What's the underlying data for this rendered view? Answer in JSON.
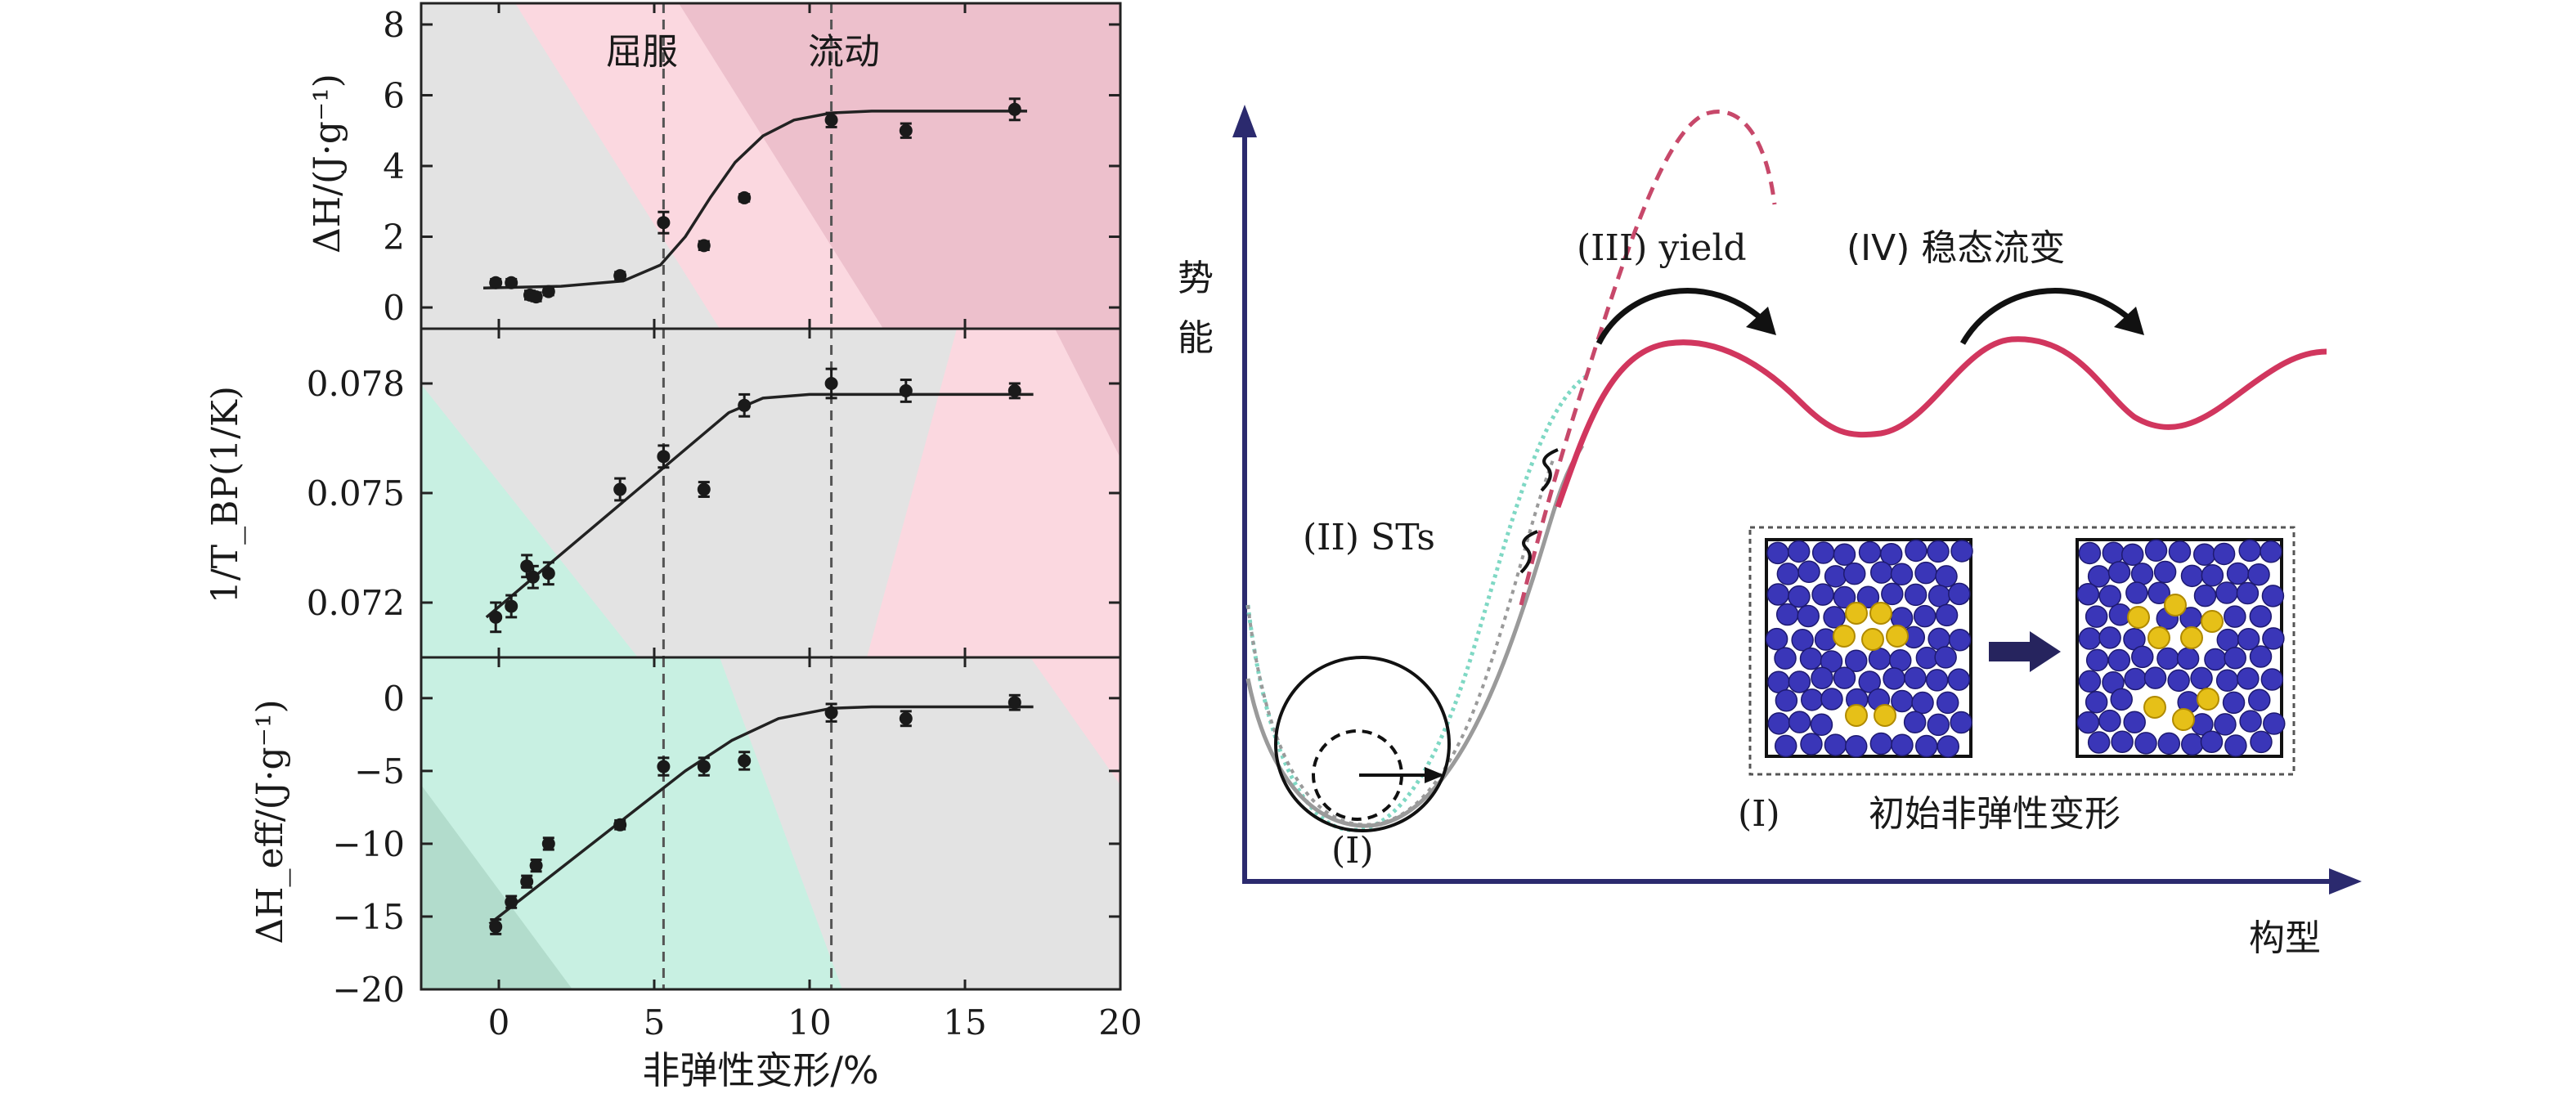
{
  "chart_data": [
    {
      "type": "scatter",
      "panel": "top",
      "ylabel": "ΔH/(J·g⁻¹)",
      "xlim": [
        -2.5,
        20
      ],
      "ylim": [
        -0.6,
        8.6
      ],
      "yticks": [
        "0",
        "2",
        "4",
        "6",
        "8"
      ],
      "ytick_values": [
        0,
        2,
        4,
        6,
        8
      ],
      "annotations": [
        "屈服",
        "流动"
      ],
      "vlines": [
        5.3,
        10.7
      ],
      "series": [
        {
          "points": [
            [
              -0.1,
              0.7
            ],
            [
              0.4,
              0.7
            ],
            [
              1.0,
              0.35
            ],
            [
              1.2,
              0.3
            ],
            [
              1.6,
              0.45
            ],
            [
              3.9,
              0.9
            ],
            [
              5.3,
              2.4
            ],
            [
              6.6,
              1.75
            ],
            [
              7.9,
              3.1
            ],
            [
              10.7,
              5.3
            ],
            [
              13.1,
              5.0
            ],
            [
              16.6,
              5.6
            ]
          ],
          "errors": [
            0.1,
            0.1,
            0.12,
            0.12,
            0.1,
            0.1,
            0.3,
            0.12,
            0.1,
            0.2,
            0.2,
            0.3
          ]
        },
        {
          "fit": [
            [
              -0.5,
              0.55
            ],
            [
              2,
              0.6
            ],
            [
              4,
              0.75
            ],
            [
              5.2,
              1.2
            ],
            [
              6.0,
              2.0
            ],
            [
              6.8,
              3.1
            ],
            [
              7.6,
              4.1
            ],
            [
              8.5,
              4.85
            ],
            [
              9.5,
              5.3
            ],
            [
              10.7,
              5.5
            ],
            [
              12,
              5.55
            ],
            [
              17,
              5.55
            ]
          ]
        }
      ]
    },
    {
      "type": "scatter",
      "panel": "middle",
      "ylabel": "1/T_BP(1/K)",
      "xlim": [
        -2.5,
        20
      ],
      "ylim": [
        0.0705,
        0.0795
      ],
      "yticks": [
        "0.072",
        "0.075",
        "0.078"
      ],
      "ytick_values": [
        0.072,
        0.075,
        0.078
      ],
      "series": [
        {
          "points": [
            [
              -0.1,
              0.0716
            ],
            [
              0.4,
              0.0719
            ],
            [
              0.9,
              0.073
            ],
            [
              1.1,
              0.0727
            ],
            [
              1.6,
              0.0728
            ],
            [
              3.9,
              0.0751
            ],
            [
              5.3,
              0.076
            ],
            [
              6.6,
              0.0751
            ],
            [
              7.9,
              0.0774
            ],
            [
              10.7,
              0.078
            ],
            [
              13.1,
              0.0778
            ],
            [
              16.6,
              0.0778
            ]
          ],
          "errors": [
            0.0004,
            0.0003,
            0.0003,
            0.0003,
            0.0003,
            0.0003,
            0.0003,
            0.0002,
            0.0003,
            0.0004,
            0.0003,
            0.0002
          ]
        },
        {
          "fit": [
            [
              -0.4,
              0.0716
            ],
            [
              7.4,
              0.0772
            ],
            [
              8.5,
              0.0776
            ],
            [
              10,
              0.0777
            ],
            [
              17.2,
              0.0777
            ]
          ]
        }
      ]
    },
    {
      "type": "scatter",
      "panel": "bottom",
      "ylabel": "ΔH_eff/(J·g⁻¹)",
      "xlabel": "非弹性变形/%",
      "xlim": [
        -2.5,
        20
      ],
      "ylim": [
        -20.0,
        2.8
      ],
      "xticks": [
        "0",
        "5",
        "10",
        "15",
        "20"
      ],
      "xtick_values": [
        0,
        5,
        10,
        15,
        20
      ],
      "yticks": [
        "0",
        "−5",
        "−10",
        "−15",
        "−20"
      ],
      "ytick_values": [
        0,
        -5,
        -10,
        -15,
        -20
      ],
      "series": [
        {
          "points": [
            [
              -0.1,
              -15.7
            ],
            [
              0.4,
              -14.0
            ],
            [
              0.9,
              -12.6
            ],
            [
              1.2,
              -11.5
            ],
            [
              1.6,
              -10.0
            ],
            [
              3.9,
              -8.7
            ],
            [
              5.3,
              -4.7
            ],
            [
              6.6,
              -4.7
            ],
            [
              7.9,
              -4.3
            ],
            [
              10.7,
              -1.0
            ],
            [
              13.1,
              -1.4
            ],
            [
              16.6,
              -0.3
            ]
          ],
          "errors": [
            0.5,
            0.4,
            0.4,
            0.4,
            0.4,
            0.3,
            0.6,
            0.6,
            0.6,
            0.6,
            0.5,
            0.5
          ]
        },
        {
          "fit": [
            [
              -0.3,
              -15.5
            ],
            [
              6.0,
              -5.0
            ],
            [
              7.5,
              -2.9
            ],
            [
              9,
              -1.4
            ],
            [
              10.7,
              -0.7
            ],
            [
              12,
              -0.6
            ],
            [
              17.2,
              -0.6
            ]
          ]
        }
      ]
    }
  ],
  "schematic": {
    "y_axis_label": [
      "势",
      "能"
    ],
    "x_axis_label": "构型",
    "labels": {
      "sts": "(II) STs",
      "yield": "(III) yield",
      "steady_flow": "(IV) 稳态流变",
      "basin": "(I)",
      "inset_caption_num": "(I)",
      "inset_caption": "初始非弹性变形"
    },
    "colors": {
      "curve_red": "#d1365e",
      "curve_red_dashed": "#c7486a",
      "curve_teal": "#7fd8c4",
      "curve_gray": "#9a9a9a",
      "axis": "#2b2a6e",
      "atom_blue": "#3a36b8",
      "atom_yellow": "#e6c018",
      "inset_arrow": "#26245e"
    }
  },
  "colors": {
    "bg_gray": "#e3e3e3",
    "bg_pink": "#fbd8e0",
    "bg_rose": "#edc0cc",
    "bg_mint": "#c8f0e2",
    "bg_deepmint": "#b2dccc",
    "data_black": "#1a1a1a",
    "dash_gray": "#555555"
  }
}
